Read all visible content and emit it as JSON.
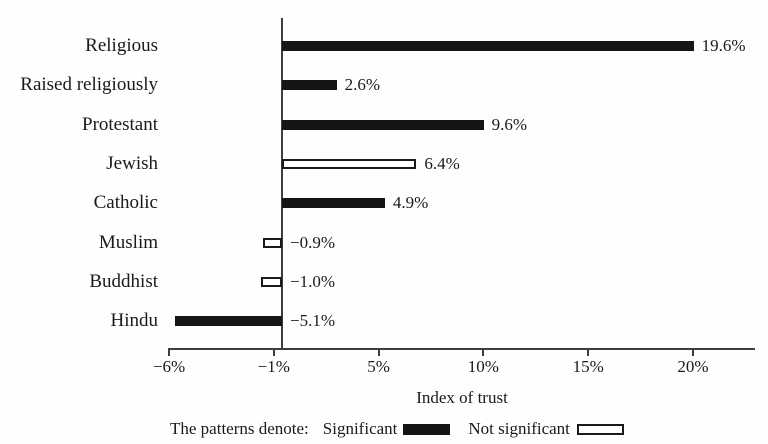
{
  "chart_data": {
    "type": "bar",
    "orientation": "horizontal",
    "title": "",
    "xlabel": "Index of trust",
    "categories": [
      "Religious",
      "Raised religiously",
      "Protestant",
      "Jewish",
      "Catholic",
      "Muslim",
      "Buddhist",
      "Hindu"
    ],
    "values": [
      19.6,
      2.6,
      9.6,
      6.4,
      4.9,
      -0.9,
      -1.0,
      -5.1
    ],
    "value_labels": [
      "19.6%",
      "2.6%",
      "9.6%",
      "6.4%",
      "4.9%",
      "−0.9%",
      "−1.0%",
      "−5.1%"
    ],
    "significant": [
      true,
      true,
      true,
      false,
      true,
      false,
      false,
      true
    ],
    "x_tick_labels": [
      "−6%",
      "−1%",
      "5%",
      "10%",
      "15%",
      "20%"
    ],
    "grid": false,
    "legend": {
      "position": "bottom",
      "intro": "The patterns denote:",
      "significant_label": "Significant",
      "not_significant_label": "Not significant"
    },
    "colors": {
      "significant_fill": "#151515",
      "not_significant_fill": "#ffffff",
      "bar_border": "#1a1a1a",
      "axis": "#3d3d3d",
      "text": "#1a1a1a",
      "background": "#fefefe"
    }
  }
}
